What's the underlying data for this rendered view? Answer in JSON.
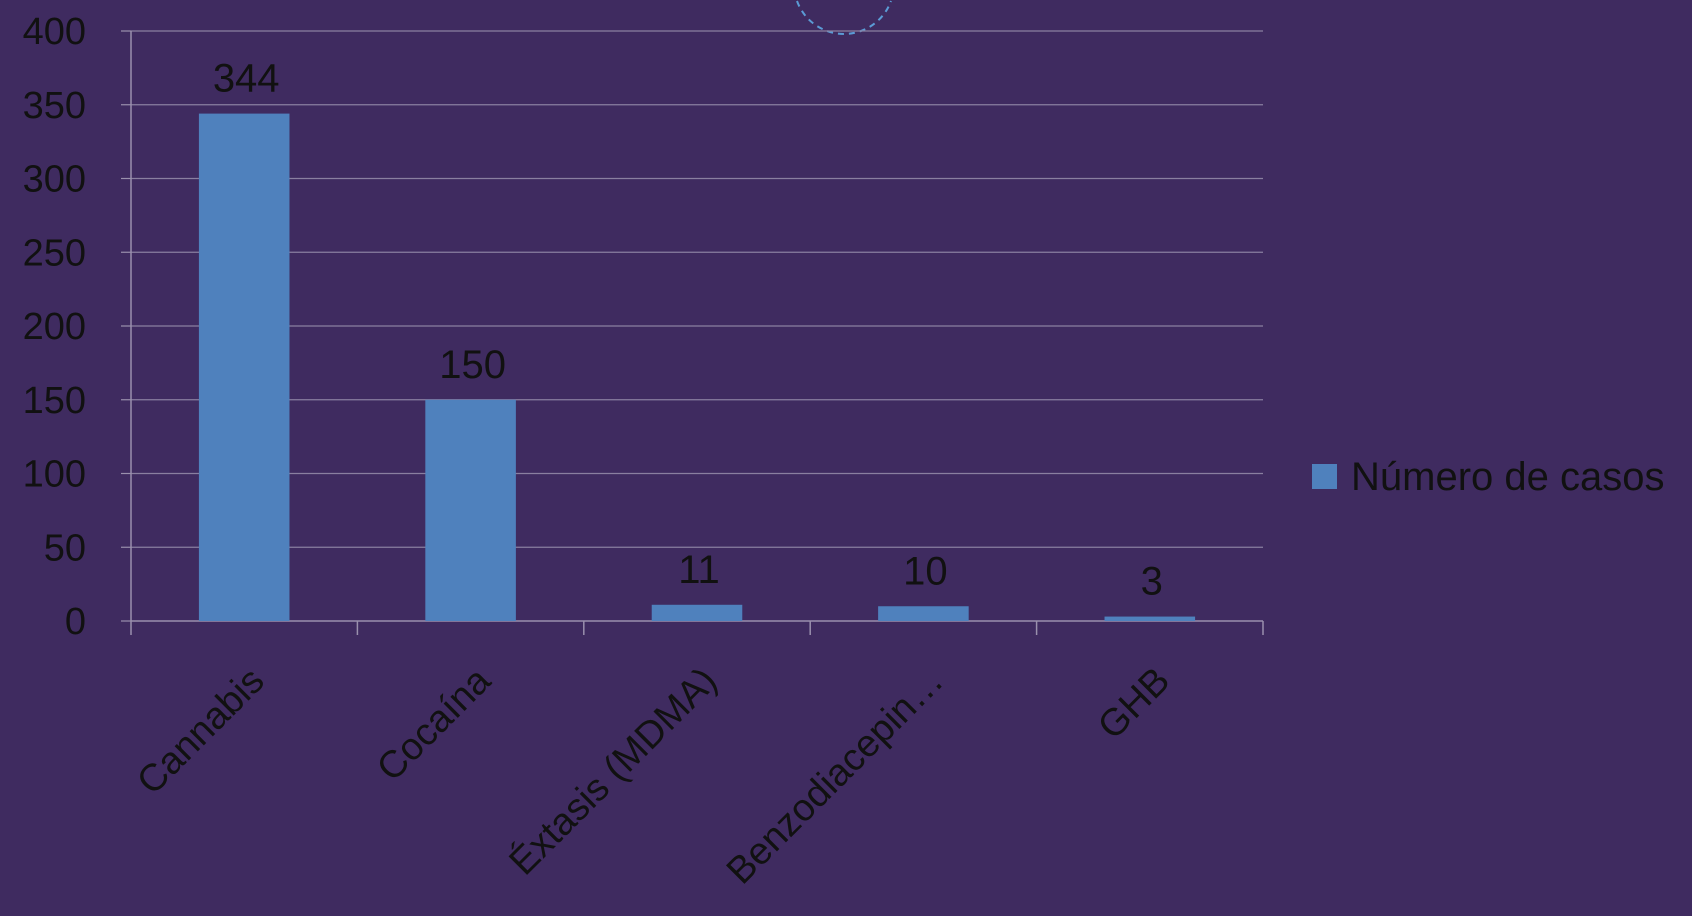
{
  "colors": {
    "background": "#3f2b60",
    "bar": "#4f81bd",
    "gridline": "#8a7fa0",
    "axis": "#9a90ad",
    "text": "#111111",
    "decoration": "#5b9bd5"
  },
  "chart_data": {
    "type": "bar",
    "title": "",
    "xlabel": "",
    "ylabel": "",
    "categories": [
      "Cannabis",
      "Cocaína",
      "Éxtasis (MDMA)",
      "Benzodiacepin…",
      "GHB"
    ],
    "series": [
      {
        "name": "Número de casos",
        "values": [
          344,
          150,
          11,
          10,
          3
        ]
      }
    ],
    "data_labels": [
      "344",
      "150",
      "11",
      "10",
      "3"
    ],
    "ylim": [
      0,
      400
    ],
    "y_ticks": [
      0,
      50,
      100,
      150,
      200,
      250,
      300,
      350,
      400
    ],
    "y_tick_labels": [
      "0",
      "50",
      "100",
      "150",
      "200",
      "250",
      "300",
      "350",
      "400"
    ],
    "grid": true,
    "legend_position": "right",
    "x_tick_rotation_deg": -45
  }
}
